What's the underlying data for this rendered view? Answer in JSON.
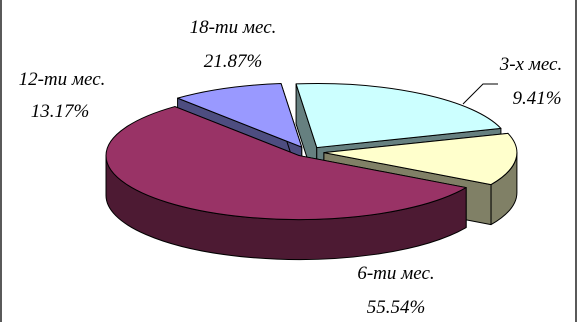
{
  "chart_data": {
    "type": "pie",
    "title": "",
    "categories": [
      "6-ти мес.",
      "3-х мес.",
      "18-ти мес.",
      "12-ти мес."
    ],
    "values": [
      55.54,
      9.41,
      21.87,
      13.17
    ],
    "value_labels": [
      "55.54%",
      "9.41%",
      "21.87%",
      "13.17%"
    ],
    "colors": [
      "#993366",
      "#9999ff",
      "#ccffff",
      "#ffffcc"
    ],
    "side_colors": [
      "#4d1a33",
      "#4d4d80",
      "#668080",
      "#808066"
    ],
    "exploded": true,
    "three_d": true,
    "legend": "none"
  }
}
